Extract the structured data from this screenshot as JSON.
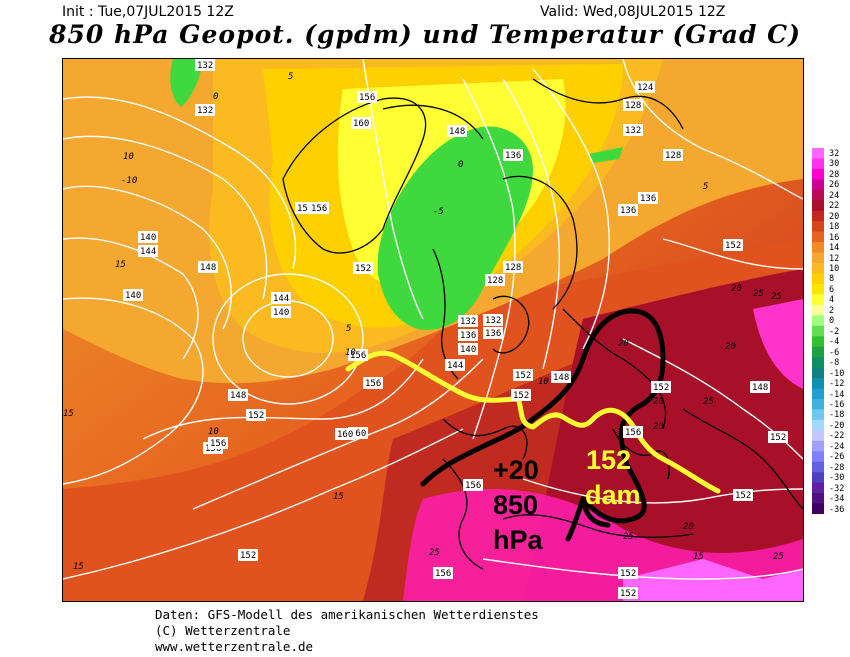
{
  "header": {
    "init": "Init : Tue,07JUL2015 12Z",
    "valid": "Valid: Wed,08JUL2015 12Z",
    "title": "850 hPa Geopot. (gpdm) und Temperatur (Grad C)"
  },
  "colors": {
    "cold_green": "#3fd83f",
    "yellow": "#ffff00",
    "warm_orange": "#f09a2a",
    "hot_red": "#a8102a",
    "magenta": "#ff33cc",
    "annotation_yellow": "#ffff33",
    "annotation_black": "#000000"
  },
  "colorbar": {
    "labels": [
      "32",
      "30",
      "28",
      "26",
      "24",
      "22",
      "20",
      "18",
      "16",
      "14",
      "12",
      "10",
      "8",
      "6",
      "4",
      "2",
      "0",
      "-2",
      "-4",
      "-6",
      "-8",
      "-10",
      "-12",
      "-14",
      "-16",
      "-18",
      "-20",
      "-22",
      "-24",
      "-26",
      "-28",
      "-30",
      "-32",
      "-34",
      "-36"
    ],
    "colors": [
      "#ff66ff",
      "#ff33ee",
      "#ff00cc",
      "#cc0099",
      "#b80a55",
      "#a8102a",
      "#c3281e",
      "#d6461e",
      "#e66420",
      "#f08c28",
      "#f5a830",
      "#faba20",
      "#ffd000",
      "#ffe400",
      "#ffff33",
      "#ffff99",
      "#a0ff80",
      "#60e050",
      "#30c030",
      "#20a040",
      "#109060",
      "#108080",
      "#1090b0",
      "#20a0d0",
      "#40b0e0",
      "#70c8f0",
      "#a0d8ff",
      "#c0c8ff",
      "#a0a0ff",
      "#8080ff",
      "#6060e0",
      "#5040c0",
      "#6020a0",
      "#501080",
      "#400060"
    ]
  },
  "map": {
    "geopotential_labels": [
      "132",
      "132",
      "124",
      "128",
      "132",
      "156",
      "160",
      "148",
      "136",
      "128",
      "136",
      "132",
      "140",
      "144",
      "148",
      "140",
      "144",
      "148",
      "152",
      "156",
      "152",
      "156",
      "160",
      "128",
      "132",
      "136",
      "140",
      "144",
      "148",
      "152",
      "156",
      "152",
      "148",
      "152",
      "152",
      "152",
      "152",
      "156",
      "156",
      "152",
      "156",
      "140",
      "128",
      "136",
      "136",
      "15",
      "156",
      "152",
      "152",
      "156",
      "160"
    ],
    "temperature_labels": [
      "0",
      "5",
      "10",
      "15",
      "20",
      "25",
      "-5",
      "0",
      "5",
      "10",
      "15",
      "20",
      "25",
      "-10",
      "15",
      "10",
      "15",
      "20",
      "25",
      "20",
      "15",
      "25",
      "20",
      "25",
      "25",
      "20",
      "10",
      "5"
    ],
    "annotations": {
      "plus20": "+20",
      "level": "850",
      "unit": "hPa",
      "geo_value": "152",
      "geo_unit": "dam"
    }
  },
  "footer": {
    "line1": "Daten: GFS-Modell des amerikanischen Wetterdienstes",
    "line2": "(C) Wetterzentrale",
    "line3": "www.wetterzentrale.de"
  }
}
